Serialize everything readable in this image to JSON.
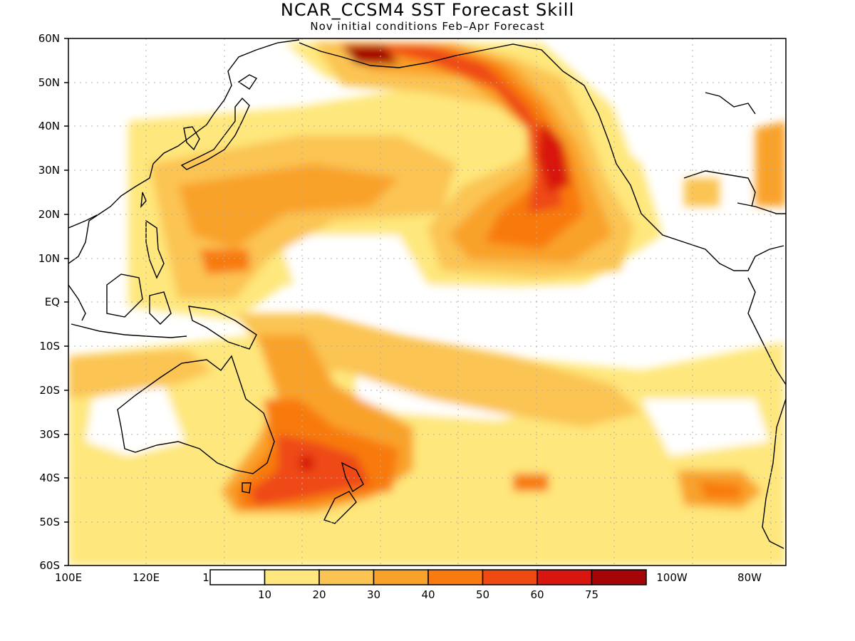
{
  "title": "NCAR_CCSM4 SST Forecast Skill",
  "subtitle": "Nov initial conditions   Feb–Apr Forecast",
  "lat_labels": [
    "60N",
    "50N",
    "40N",
    "30N",
    "20N",
    "10N",
    "EQ",
    "10S",
    "20S",
    "30S",
    "40S",
    "50S",
    "60S"
  ],
  "lon_labels": [
    "100E",
    "120E",
    "1",
    "100W",
    "80W"
  ],
  "colorbar": {
    "colors": [
      "#ffffff",
      "#fee77c",
      "#fbc452",
      "#f9a22a",
      "#f87a10",
      "#ee4a12",
      "#d8160f",
      "#a50506"
    ],
    "tick_labels": [
      "10",
      "20",
      "30",
      "40",
      "50",
      "60",
      "75"
    ]
  }
}
